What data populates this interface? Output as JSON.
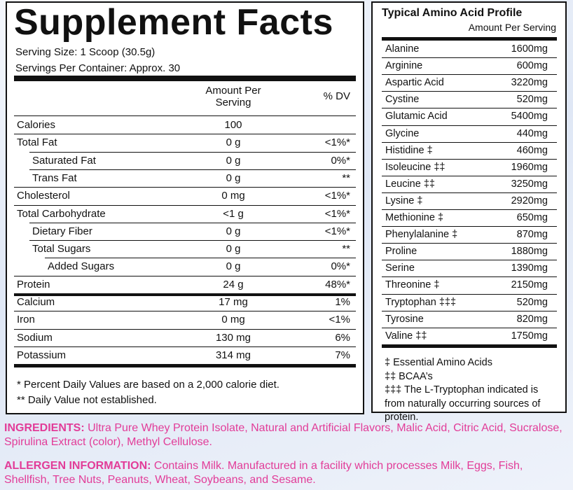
{
  "facts": {
    "title": "Supplement Facts",
    "serving_size": "Serving Size: 1 Scoop (30.5g)",
    "servings": "Servings Per Container: Approx. 30",
    "columns": {
      "amount": "Amount Per Serving",
      "dv": "% DV"
    },
    "rows": [
      [
        "Calories",
        "100"
      ],
      [
        "Total Fat",
        "0 g",
        "<1%*"
      ],
      [
        "Saturated Fat",
        "0 g",
        "0%*"
      ],
      [
        "Trans Fat",
        "0 g",
        "**"
      ],
      [
        "Cholesterol",
        "0 mg",
        "<1%*"
      ],
      [
        "Total Carbohydrate",
        "<1 g",
        "<1%*"
      ],
      [
        "Dietary Fiber",
        "0 g",
        "<1%*"
      ],
      [
        "Total Sugars",
        "0 g",
        "**"
      ],
      [
        "Added Sugars",
        "0 g",
        "0%*"
      ],
      [
        "Protein",
        "24 g",
        "48%*"
      ],
      [
        "Calcium",
        "17 mg",
        "1%"
      ],
      [
        "Iron",
        "0 mg",
        "<1%"
      ],
      [
        "Sodium",
        "130 mg",
        "6%"
      ],
      [
        "Potassium",
        "314 mg",
        "7%"
      ]
    ],
    "footnotes": [
      "* Percent Daily Values are based on a 2,000 calorie diet.",
      "** Daily Value not established."
    ]
  },
  "amino": {
    "title": "Typical Amino Acid Profile",
    "subtitle": "Amount Per Serving",
    "rows": [
      [
        "Alanine",
        "1600mg"
      ],
      [
        "Arginine",
        "600mg"
      ],
      [
        "Aspartic Acid",
        "3220mg"
      ],
      [
        "Cystine",
        "520mg"
      ],
      [
        "Glutamic Acid",
        "5400mg"
      ],
      [
        "Glycine",
        "440mg"
      ],
      [
        "Histidine ‡",
        "460mg"
      ],
      [
        "Isoleucine ‡‡",
        "1960mg"
      ],
      [
        "Leucine ‡‡",
        "3250mg"
      ],
      [
        "Lysine ‡",
        "2920mg"
      ],
      [
        "Methionine ‡",
        "650mg"
      ],
      [
        "Phenylalanine ‡",
        "870mg"
      ],
      [
        "Proline",
        "1880mg"
      ],
      [
        "Serine",
        "1390mg"
      ],
      [
        "Threonine ‡",
        "2150mg"
      ],
      [
        "Tryptophan ‡‡‡",
        "520mg"
      ],
      [
        "Tyrosine",
        "820mg"
      ],
      [
        "Valine ‡‡",
        "1750mg"
      ]
    ],
    "footnotes": [
      "‡ Essential Amino Acids",
      "‡‡ BCAA’s",
      "‡‡‡ The L-Tryptophan indicated is from naturally occurring sources of protein."
    ]
  },
  "ingredients": {
    "label": "INGREDIENTS:",
    "text": "Ultra Pure Whey Protein Isolate, Natural and Artificial Flavors, Malic Acid, Citric Acid, Sucralose, Spirulina Extract (color), Methyl Cellulose."
  },
  "allergen": {
    "label": "ALLERGEN INFORMATION:",
    "text": "Contains Milk. Manufactured in a facility which processes Milk, Eggs, Fish, Shellfish, Tree Nuts, Peanuts, Wheat, Soybeans, and Sesame."
  }
}
